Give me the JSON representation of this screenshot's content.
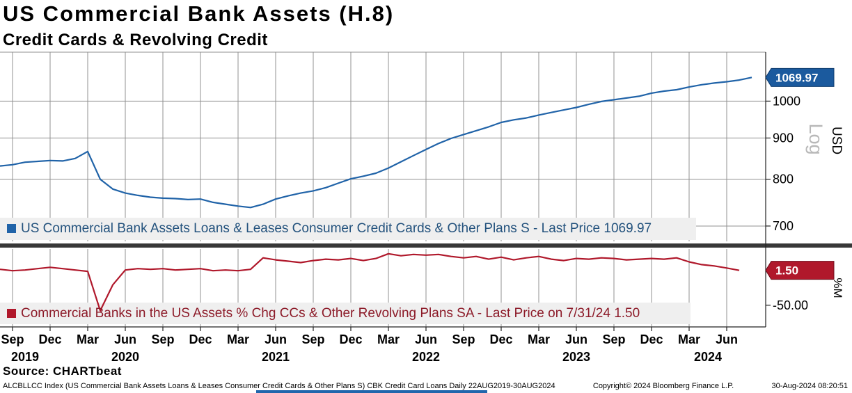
{
  "chart_data": {
    "type": "line",
    "title": "US Commercial Bank Assets (H.8)",
    "subtitle": "Credit Cards & Revolving Credit",
    "frequency": "monthly",
    "x_start": "2019-08",
    "x_end": "2024-08",
    "grid": true,
    "legend_position": "inside-bottom",
    "x_axis": {
      "month_ticks": [
        {
          "i": 1,
          "label": "Sep"
        },
        {
          "i": 4,
          "label": "Dec"
        },
        {
          "i": 7,
          "label": "Mar"
        },
        {
          "i": 10,
          "label": "Jun"
        },
        {
          "i": 13,
          "label": "Sep"
        },
        {
          "i": 16,
          "label": "Dec"
        },
        {
          "i": 19,
          "label": "Mar"
        },
        {
          "i": 22,
          "label": "Jun"
        },
        {
          "i": 25,
          "label": "Sep"
        },
        {
          "i": 28,
          "label": "Dec"
        },
        {
          "i": 31,
          "label": "Mar"
        },
        {
          "i": 34,
          "label": "Jun"
        },
        {
          "i": 37,
          "label": "Sep"
        },
        {
          "i": 40,
          "label": "Dec"
        },
        {
          "i": 43,
          "label": "Mar"
        },
        {
          "i": 46,
          "label": "Jun"
        },
        {
          "i": 49,
          "label": "Sep"
        },
        {
          "i": 52,
          "label": "Dec"
        },
        {
          "i": 55,
          "label": "Mar"
        },
        {
          "i": 58,
          "label": "Jun"
        }
      ],
      "year_ticks": [
        {
          "i": 2,
          "label": "2019"
        },
        {
          "i": 10,
          "label": "2020"
        },
        {
          "i": 22,
          "label": "2021"
        },
        {
          "i": 34,
          "label": "2022"
        },
        {
          "i": 46,
          "label": "2023"
        },
        {
          "i": 56.5,
          "label": "2024"
        }
      ]
    },
    "panels": [
      {
        "id": "price",
        "scale": "log",
        "scale_label": "Log",
        "axis_label": "USD",
        "ylim": [
          670,
          1150
        ],
        "yticks": [
          {
            "v": 1000,
            "label": "1000"
          },
          {
            "v": 900,
            "label": "900"
          },
          {
            "v": 800,
            "label": "800"
          },
          {
            "v": 700,
            "label": "700"
          }
        ],
        "series_name": "US Commercial Bank Assets Loans & Leases Consumer Credit Cards & Other Plans S",
        "legend_text": "US Commercial Bank Assets Loans & Leases Consumer Credit Cards & Other Plans S - Last Price 1069.97",
        "legend_text_color": "#23527d",
        "last_price_label": "1069.97",
        "line_color": "#2063a8",
        "callout_fill": "#1b5a9e",
        "callout_border": "#0f3c6e",
        "values": [
          831,
          834,
          840,
          842,
          844,
          843,
          849,
          866,
          800,
          778,
          769,
          764,
          760,
          758,
          757,
          755,
          756,
          749,
          745,
          741,
          738,
          745,
          756,
          763,
          769,
          774,
          781,
          791,
          801,
          807,
          814,
          826,
          841,
          856,
          871,
          886,
          899,
          909,
          919,
          929,
          941,
          948,
          953,
          961,
          968,
          975,
          982,
          991,
          999,
          1004,
          1009,
          1014,
          1023,
          1029,
          1033,
          1041,
          1048,
          1053,
          1057,
          1062,
          1069.97
        ]
      },
      {
        "id": "pct-change",
        "scale": "linear",
        "scale_label": "",
        "axis_label": "%M",
        "ylim": [
          -82,
          33
        ],
        "yticks": [
          {
            "v": -50,
            "label": "-50.00"
          }
        ],
        "series_name": "Commercial Banks in the US Assets % Chg CCs & Other Revolving Plans SA",
        "legend_text": "Commercial Banks in the US Assets % Chg CCs & Other Revolving Plans SA - Last Price on 7/31/24 1.50",
        "legend_text_color": "#8c1a28",
        "last_price_label": "1.50",
        "line_color": "#b0182b",
        "callout_fill": "#b0182b",
        "callout_border": "#6d0f1c",
        "values": [
          3,
          1,
          2,
          4,
          6,
          4,
          2,
          0,
          -58,
          -20,
          2,
          4,
          3,
          4,
          2,
          3,
          4,
          1,
          2,
          1,
          3,
          20,
          17,
          15,
          13,
          16,
          18,
          17,
          19,
          16,
          19,
          26,
          23,
          25,
          24,
          25,
          22,
          20,
          22,
          18,
          21,
          17,
          20,
          22,
          18,
          16,
          19,
          18,
          20,
          19,
          17,
          18,
          19,
          18,
          20,
          14,
          10,
          8,
          5,
          1.5
        ]
      }
    ]
  },
  "source": "Source: CHARTbeat",
  "footer": {
    "left": "ALCBLLCC Index (US Commercial Bank Assets Loans & Leases Consumer Credit Cards & Other Plans S) CBK Credit Card Loans  Daily 22AUG2019-30AUG2024",
    "copyright": "Copyright© 2024 Bloomberg Finance L.P.",
    "datetime": "30-Aug-2024 08:20:51"
  }
}
